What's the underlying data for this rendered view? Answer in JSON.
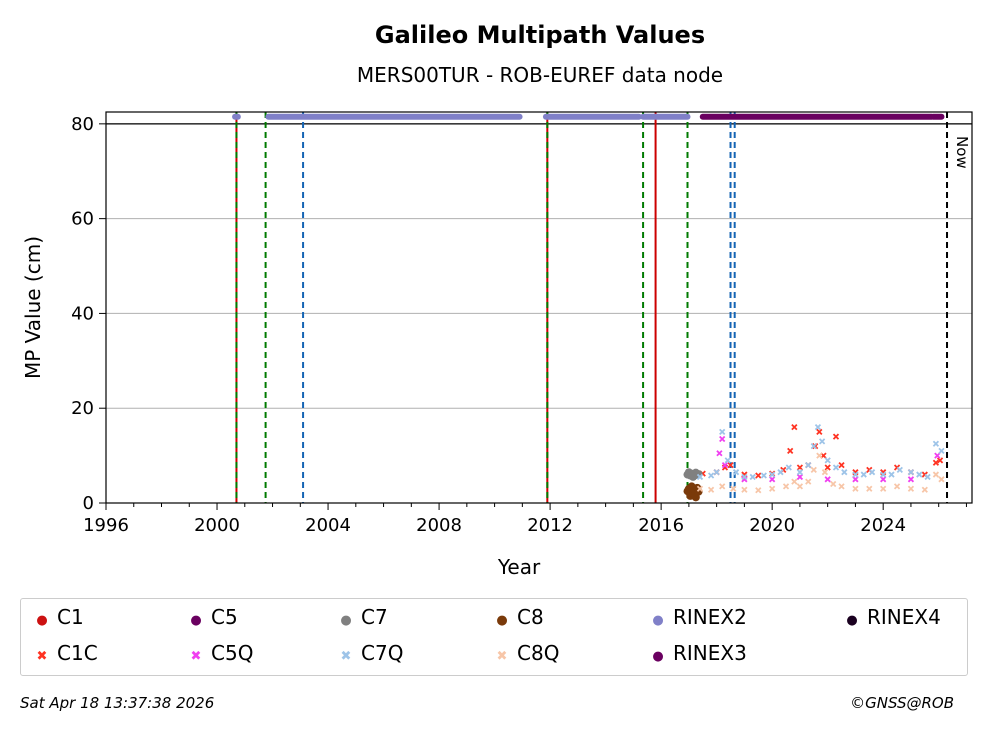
{
  "chart_data": {
    "type": "scatter",
    "title": "Galileo Multipath Values",
    "subtitle": "MERS00TUR - ROB-EUREF data node",
    "xlabel": "Year",
    "ylabel": "MP Value (cm)",
    "xlim": [
      1996,
      2027.2
    ],
    "ylim": [
      0,
      82.5
    ],
    "x_ticks": [
      "1996",
      "2000",
      "2004",
      "2008",
      "2012",
      "2016",
      "2020",
      "2024"
    ],
    "y_ticks": [
      "0",
      "20",
      "40",
      "60",
      "80"
    ],
    "grid": "y",
    "legend_position": "bottom",
    "now_label": "Now",
    "now_year": 2026.3,
    "vlines": [
      {
        "x": 2000.7,
        "color": "#cc0000",
        "style": "solid"
      },
      {
        "x": 2000.7,
        "color": "#007a00",
        "style": "dashed"
      },
      {
        "x": 2001.75,
        "color": "#007a00",
        "style": "dashed"
      },
      {
        "x": 2003.1,
        "color": "#1464b4",
        "style": "dashed"
      },
      {
        "x": 2011.9,
        "color": "#cc0000",
        "style": "solid"
      },
      {
        "x": 2011.9,
        "color": "#007a00",
        "style": "dashed"
      },
      {
        "x": 2015.35,
        "color": "#007a00",
        "style": "dashed"
      },
      {
        "x": 2015.8,
        "color": "#cc0000",
        "style": "solid"
      },
      {
        "x": 2016.95,
        "color": "#007a00",
        "style": "dashed"
      },
      {
        "x": 2018.5,
        "color": "#1464b4",
        "style": "dashed"
      },
      {
        "x": 2018.65,
        "color": "#1464b4",
        "style": "dashed"
      }
    ],
    "rinex_bands": [
      {
        "name": "RINEX2",
        "y": 81.5,
        "color": "#8080c8",
        "segments": [
          [
            2000.65,
            2000.75
          ],
          [
            2001.85,
            2010.9
          ],
          [
            2011.85,
            2015.2
          ],
          [
            2015.35,
            2016.95
          ]
        ]
      },
      {
        "name": "RINEX3",
        "y": 81.5,
        "color": "#6a0060",
        "segments": [
          [
            2017.5,
            2025.75
          ],
          [
            2025.8,
            2026.1
          ]
        ]
      }
    ],
    "series": [
      {
        "name": "C1",
        "marker": "dot",
        "color": "#cc1111",
        "x": [],
        "y": []
      },
      {
        "name": "C1C",
        "marker": "x",
        "color": "#ff3322",
        "x": [
          2017.0,
          2017.5,
          2018.0,
          2018.3,
          2018.5,
          2019.0,
          2019.5,
          2020.0,
          2020.4,
          2020.65,
          2020.8,
          2021.0,
          2021.3,
          2021.55,
          2021.7,
          2021.85,
          2022.0,
          2022.3,
          2022.5,
          2023.0,
          2023.5,
          2024.0,
          2024.5,
          2025.0,
          2025.5,
          2025.9,
          2026.05
        ],
        "y": [
          6.0,
          6.2,
          6.5,
          7.5,
          8.0,
          6.0,
          5.8,
          6.2,
          7.0,
          11.0,
          16.0,
          7.5,
          8.0,
          12.0,
          15.0,
          10.0,
          7.5,
          14.0,
          8.0,
          6.5,
          7.0,
          6.5,
          7.5,
          6.5,
          6.0,
          8.5,
          9.0
        ]
      },
      {
        "name": "C5",
        "marker": "dot",
        "color": "#6a0060",
        "x": [],
        "y": []
      },
      {
        "name": "C5Q",
        "marker": "x",
        "color": "#f040f0",
        "x": [
          2018.1,
          2018.2,
          2018.3,
          2019.0,
          2020.0,
          2021.0,
          2022.0,
          2023.0,
          2024.0,
          2025.0,
          2025.95
        ],
        "y": [
          10.5,
          13.5,
          8.0,
          5.0,
          5.0,
          5.5,
          5.0,
          5.0,
          5.0,
          5.0,
          10.0
        ]
      },
      {
        "name": "C7",
        "marker": "dot",
        "color": "#808080",
        "x": [
          2016.95,
          2017.0,
          2017.05,
          2017.1,
          2017.15,
          2017.2,
          2017.25,
          2017.3,
          2017.35
        ],
        "y": [
          6.0,
          6.5,
          5.8,
          6.2,
          5.5,
          6.0,
          6.4,
          5.9,
          6.1
        ]
      },
      {
        "name": "C7Q",
        "marker": "x",
        "color": "#9ec4e8",
        "x": [
          2017.4,
          2017.8,
          2018.0,
          2018.2,
          2018.4,
          2018.7,
          2019.0,
          2019.3,
          2019.7,
          2020.0,
          2020.3,
          2020.6,
          2021.0,
          2021.3,
          2021.5,
          2021.65,
          2021.8,
          2022.0,
          2022.3,
          2022.6,
          2023.0,
          2023.3,
          2023.6,
          2024.0,
          2024.3,
          2024.6,
          2025.0,
          2025.3,
          2025.6,
          2025.9,
          2026.1
        ],
        "y": [
          5.5,
          5.8,
          6.5,
          15.0,
          9.0,
          6.5,
          5.5,
          5.5,
          5.8,
          6.0,
          6.5,
          7.5,
          6.5,
          8.0,
          12.0,
          16.0,
          13.0,
          9.0,
          7.5,
          6.5,
          6.0,
          6.0,
          6.5,
          6.0,
          6.0,
          7.0,
          6.5,
          6.0,
          5.5,
          12.5,
          11.0
        ]
      },
      {
        "name": "C8",
        "marker": "dot",
        "color": "#7a3a0a",
        "x": [
          2016.95,
          2017.0,
          2017.05,
          2017.1,
          2017.15,
          2017.2,
          2017.25,
          2017.3,
          2017.35
        ],
        "y": [
          2.5,
          3.0,
          1.5,
          3.5,
          2.0,
          2.8,
          1.2,
          3.2,
          2.4
        ]
      },
      {
        "name": "C8Q",
        "marker": "x",
        "color": "#f7c6a8",
        "x": [
          2017.4,
          2017.8,
          2018.2,
          2018.6,
          2019.0,
          2019.5,
          2020.0,
          2020.5,
          2020.8,
          2021.0,
          2021.3,
          2021.5,
          2021.7,
          2021.9,
          2022.2,
          2022.5,
          2023.0,
          2023.5,
          2024.0,
          2024.5,
          2025.0,
          2025.5,
          2025.9,
          2026.1
        ],
        "y": [
          3.0,
          2.8,
          3.5,
          3.0,
          2.8,
          2.7,
          3.0,
          3.5,
          4.5,
          3.5,
          4.5,
          7.0,
          10.0,
          6.5,
          4.0,
          3.5,
          3.0,
          3.0,
          3.0,
          3.5,
          3.0,
          2.8,
          6.0,
          5.0
        ]
      },
      {
        "name": "RINEX2",
        "marker": "dot",
        "color": "#8080c8",
        "x": [],
        "y": []
      },
      {
        "name": "RINEX3",
        "marker": "dot",
        "color": "#6a0060",
        "x": [],
        "y": []
      },
      {
        "name": "RINEX4",
        "marker": "dot",
        "color": "#1a0020",
        "x": [],
        "y": []
      }
    ]
  },
  "legend": [
    {
      "label": "C1",
      "marker": "●",
      "color": "#cc1111"
    },
    {
      "label": "C5",
      "marker": "●",
      "color": "#6a0060"
    },
    {
      "label": "C7",
      "marker": "●",
      "color": "#808080"
    },
    {
      "label": "C8",
      "marker": "●",
      "color": "#7a3a0a"
    },
    {
      "label": "RINEX2",
      "marker": "●",
      "color": "#8080c8"
    },
    {
      "label": "RINEX4",
      "marker": "●",
      "color": "#1a0020"
    },
    {
      "label": "C1C",
      "marker": "✖",
      "color": "#ff3322"
    },
    {
      "label": "C5Q",
      "marker": "✖",
      "color": "#f040f0"
    },
    {
      "label": "C7Q",
      "marker": "✖",
      "color": "#9ec4e8"
    },
    {
      "label": "C8Q",
      "marker": "✖",
      "color": "#f7c6a8"
    },
    {
      "label": "RINEX3",
      "marker": "●",
      "color": "#6a0060"
    }
  ],
  "footer": {
    "timestamp": "Sat Apr 18 13:37:38 2026",
    "credit": "©GNSS@ROB"
  }
}
